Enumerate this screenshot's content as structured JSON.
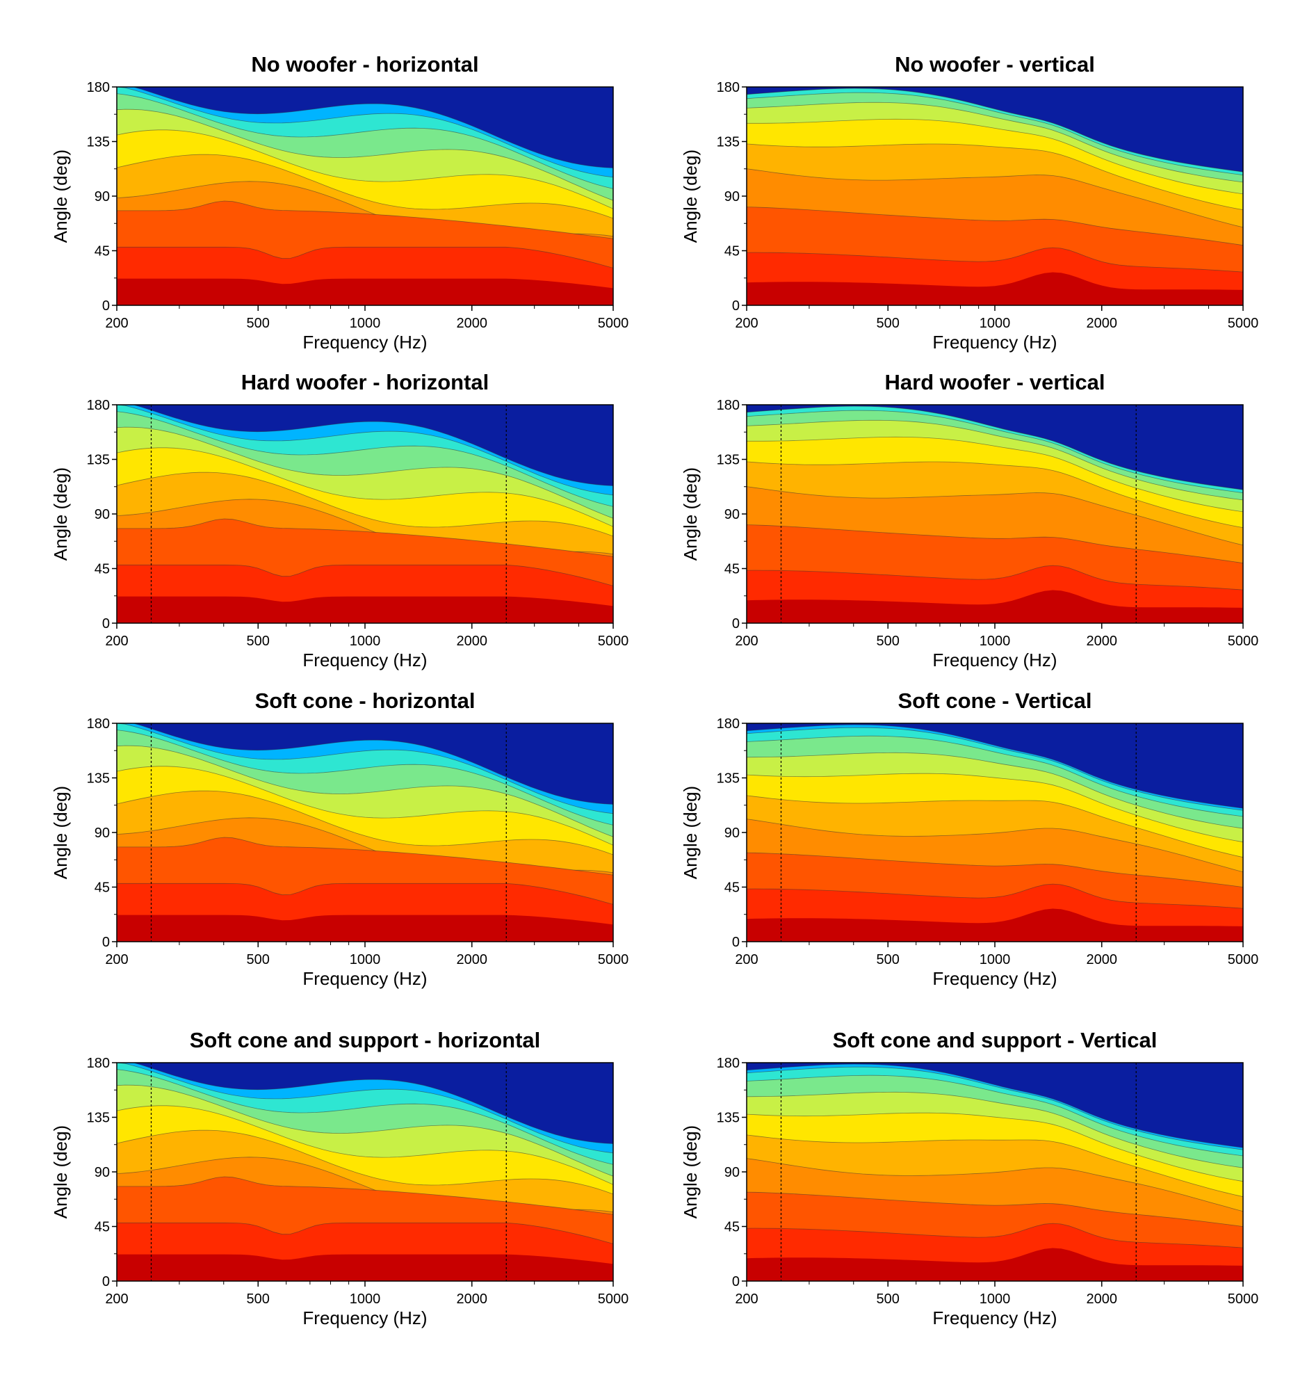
{
  "colorscale": [
    "#c80000",
    "#ff2a00",
    "#ff5500",
    "#ff8c00",
    "#ffb300",
    "#ffe600",
    "#c8f046",
    "#7ae88c",
    "#2ee6d2",
    "#00b4ff",
    "#0062ff",
    "#0a1ea0"
  ],
  "chart_data": [
    {
      "type": "heatmap",
      "title": "No woofer - horizontal",
      "xlabel": "Frequency (Hz)",
      "ylabel": "Angle (deg)",
      "xscale": "log",
      "xlim": [
        200,
        5000
      ],
      "ylim": [
        0,
        180
      ],
      "xticks": [
        200,
        500,
        1000,
        2000,
        5000
      ],
      "yticks": [
        0,
        45,
        90,
        135,
        180
      ],
      "crossover_hz": null,
      "boundaries": [
        22,
        48,
        78,
        100,
        118,
        135,
        150,
        163,
        172,
        178
      ]
    },
    {
      "type": "heatmap",
      "title": "No woofer - vertical",
      "xlabel": "Frequency (Hz)",
      "ylabel": "Angle (deg)",
      "xscale": "log",
      "xlim": [
        200,
        5000
      ],
      "ylim": [
        0,
        180
      ],
      "xticks": [
        200,
        500,
        1000,
        2000,
        5000
      ],
      "yticks": [
        0,
        45,
        90,
        135,
        180
      ],
      "crossover_hz": null,
      "boundaries": [
        18,
        42,
        80,
        115,
        140,
        158,
        170,
        177,
        180,
        180
      ]
    },
    {
      "type": "heatmap",
      "title": "Hard woofer - horizontal",
      "xlabel": "Frequency (Hz)",
      "ylabel": "Angle (deg)",
      "xscale": "log",
      "xlim": [
        200,
        5000
      ],
      "ylim": [
        0,
        180
      ],
      "xticks": [
        200,
        500,
        1000,
        2000,
        5000
      ],
      "yticks": [
        0,
        45,
        90,
        135,
        180
      ],
      "crossover_hz": [
        250,
        2500
      ],
      "boundaries": [
        22,
        48,
        78,
        100,
        118,
        135,
        150,
        163,
        172,
        178
      ]
    },
    {
      "type": "heatmap",
      "title": "Hard woofer - vertical",
      "xlabel": "Frequency (Hz)",
      "ylabel": "Angle (deg)",
      "xscale": "log",
      "xlim": [
        200,
        5000
      ],
      "ylim": [
        0,
        180
      ],
      "xticks": [
        200,
        500,
        1000,
        2000,
        5000
      ],
      "yticks": [
        0,
        45,
        90,
        135,
        180
      ],
      "crossover_hz": [
        250,
        2500
      ],
      "boundaries": [
        18,
        42,
        80,
        115,
        140,
        158,
        170,
        177,
        180,
        180
      ]
    },
    {
      "type": "heatmap",
      "title": "Soft cone  - horizontal",
      "xlabel": "Frequency (Hz)",
      "ylabel": "Angle (deg)",
      "xscale": "log",
      "xlim": [
        200,
        5000
      ],
      "ylim": [
        0,
        180
      ],
      "xticks": [
        200,
        500,
        1000,
        2000,
        5000
      ],
      "yticks": [
        0,
        45,
        90,
        135,
        180
      ],
      "crossover_hz": [
        250,
        2500
      ],
      "boundaries": [
        22,
        48,
        78,
        100,
        118,
        135,
        150,
        163,
        172,
        178
      ]
    },
    {
      "type": "heatmap",
      "title": "Soft cone - Vertical",
      "xlabel": "Frequency (Hz)",
      "ylabel": "Angle (deg)",
      "xscale": "log",
      "xlim": [
        200,
        5000
      ],
      "ylim": [
        0,
        180
      ],
      "xticks": [
        200,
        500,
        1000,
        2000,
        5000
      ],
      "yticks": [
        0,
        45,
        90,
        135,
        180
      ],
      "crossover_hz": [
        250,
        2500
      ],
      "boundaries": [
        18,
        42,
        72,
        100,
        125,
        145,
        160,
        172,
        178,
        180
      ]
    },
    {
      "type": "heatmap",
      "title": "Soft cone and support  - horizontal",
      "xlabel": "Frequency (Hz)",
      "ylabel": "Angle (deg)",
      "xscale": "log",
      "xlim": [
        200,
        5000
      ],
      "ylim": [
        0,
        180
      ],
      "xticks": [
        200,
        500,
        1000,
        2000,
        5000
      ],
      "yticks": [
        0,
        45,
        90,
        135,
        180
      ],
      "crossover_hz": [
        250,
        2500
      ],
      "boundaries": [
        22,
        48,
        78,
        100,
        118,
        135,
        150,
        163,
        172,
        178
      ]
    },
    {
      "type": "heatmap",
      "title": "Soft cone and support - Vertical",
      "xlabel": "Frequency (Hz)",
      "ylabel": "Angle (deg)",
      "xscale": "log",
      "xlim": [
        200,
        5000
      ],
      "ylim": [
        0,
        180
      ],
      "xticks": [
        200,
        500,
        1000,
        2000,
        5000
      ],
      "yticks": [
        0,
        45,
        90,
        135,
        180
      ],
      "crossover_hz": [
        250,
        2500
      ],
      "boundaries": [
        18,
        42,
        72,
        100,
        125,
        145,
        160,
        172,
        178,
        180
      ]
    }
  ]
}
